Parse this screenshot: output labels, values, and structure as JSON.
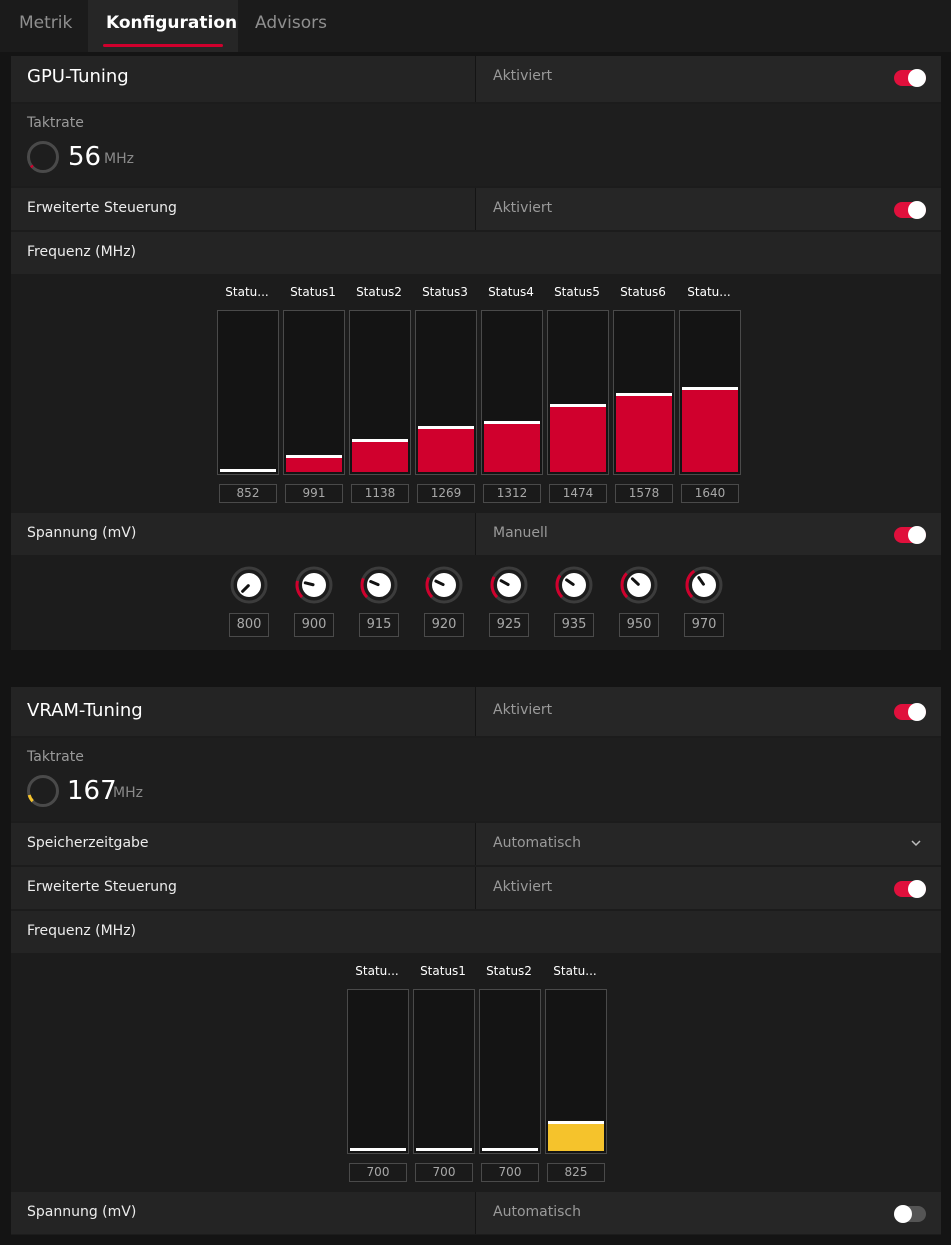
{
  "tabs": [
    "Metrik",
    "Konfiguration",
    "Advisors"
  ],
  "gpu": {
    "title": "GPU-Tuning",
    "status": "Aktiviert",
    "clock_label": "Taktrate",
    "clock_value": "56",
    "clock_unit": "MHz",
    "advanced_label": "Erweiterte Steuerung",
    "advanced_status": "Aktiviert",
    "freq_label": "Frequenz (MHz)",
    "states": [
      "Statu...",
      "Status1",
      "Status2",
      "Status3",
      "Status4",
      "Status5",
      "Status6",
      "Statu..."
    ],
    "freq_values": [
      "852",
      "991",
      "1138",
      "1269",
      "1312",
      "1474",
      "1578",
      "1640"
    ],
    "voltage_label": "Spannung (mV)",
    "voltage_status": "Manuell",
    "voltage_values": [
      "800",
      "900",
      "915",
      "920",
      "925",
      "935",
      "950",
      "970"
    ],
    "accent": "#d0002d"
  },
  "vram": {
    "title": "VRAM-Tuning",
    "status": "Aktiviert",
    "clock_label": "Taktrate",
    "clock_value": "167",
    "clock_unit": "MHz",
    "timing_label": "Speicherzeitgabe",
    "timing_value": "Automatisch",
    "advanced_label": "Erweiterte Steuerung",
    "advanced_status": "Aktiviert",
    "freq_label": "Frequenz (MHz)",
    "states": [
      "Statu...",
      "Status1",
      "Status2",
      "Statu..."
    ],
    "freq_values": [
      "700",
      "700",
      "700",
      "825"
    ],
    "voltage_label": "Spannung (mV)",
    "voltage_status": "Automatisch",
    "accent": "#f5c32c"
  }
}
